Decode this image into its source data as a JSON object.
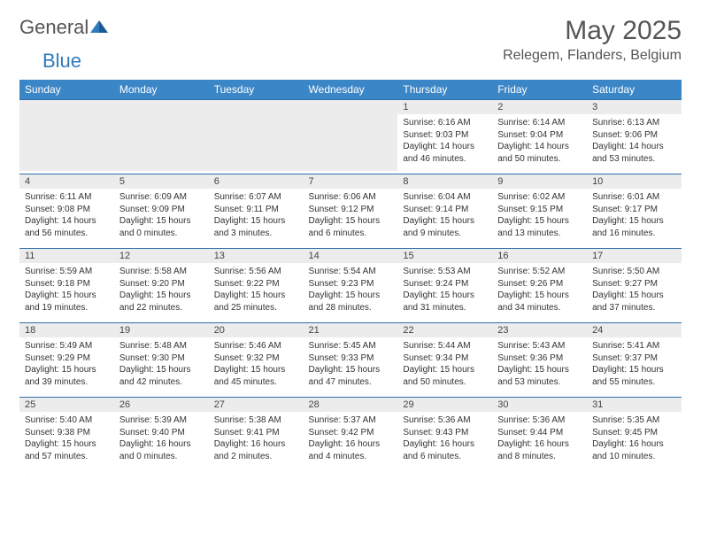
{
  "brand": {
    "name_a": "General",
    "name_b": "Blue"
  },
  "header": {
    "month": "May 2025",
    "location": "Relegem, Flanders, Belgium"
  },
  "colors": {
    "accent": "#3b86c7",
    "row_divider": "#2f6fa9",
    "daynum_bg": "#ececec",
    "text": "#333333",
    "header_text": "#555555"
  },
  "calendar": {
    "day_headers": [
      "Sunday",
      "Monday",
      "Tuesday",
      "Wednesday",
      "Thursday",
      "Friday",
      "Saturday"
    ],
    "daynum_fontsize": 11,
    "body_fontsize": 10,
    "header_fontsize": 12,
    "weeks": [
      [
        null,
        null,
        null,
        null,
        {
          "d": "1",
          "sr": "6:16 AM",
          "ss": "9:03 PM",
          "dl": "14 hours and 46 minutes."
        },
        {
          "d": "2",
          "sr": "6:14 AM",
          "ss": "9:04 PM",
          "dl": "14 hours and 50 minutes."
        },
        {
          "d": "3",
          "sr": "6:13 AM",
          "ss": "9:06 PM",
          "dl": "14 hours and 53 minutes."
        }
      ],
      [
        {
          "d": "4",
          "sr": "6:11 AM",
          "ss": "9:08 PM",
          "dl": "14 hours and 56 minutes."
        },
        {
          "d": "5",
          "sr": "6:09 AM",
          "ss": "9:09 PM",
          "dl": "15 hours and 0 minutes."
        },
        {
          "d": "6",
          "sr": "6:07 AM",
          "ss": "9:11 PM",
          "dl": "15 hours and 3 minutes."
        },
        {
          "d": "7",
          "sr": "6:06 AM",
          "ss": "9:12 PM",
          "dl": "15 hours and 6 minutes."
        },
        {
          "d": "8",
          "sr": "6:04 AM",
          "ss": "9:14 PM",
          "dl": "15 hours and 9 minutes."
        },
        {
          "d": "9",
          "sr": "6:02 AM",
          "ss": "9:15 PM",
          "dl": "15 hours and 13 minutes."
        },
        {
          "d": "10",
          "sr": "6:01 AM",
          "ss": "9:17 PM",
          "dl": "15 hours and 16 minutes."
        }
      ],
      [
        {
          "d": "11",
          "sr": "5:59 AM",
          "ss": "9:18 PM",
          "dl": "15 hours and 19 minutes."
        },
        {
          "d": "12",
          "sr": "5:58 AM",
          "ss": "9:20 PM",
          "dl": "15 hours and 22 minutes."
        },
        {
          "d": "13",
          "sr": "5:56 AM",
          "ss": "9:22 PM",
          "dl": "15 hours and 25 minutes."
        },
        {
          "d": "14",
          "sr": "5:54 AM",
          "ss": "9:23 PM",
          "dl": "15 hours and 28 minutes."
        },
        {
          "d": "15",
          "sr": "5:53 AM",
          "ss": "9:24 PM",
          "dl": "15 hours and 31 minutes."
        },
        {
          "d": "16",
          "sr": "5:52 AM",
          "ss": "9:26 PM",
          "dl": "15 hours and 34 minutes."
        },
        {
          "d": "17",
          "sr": "5:50 AM",
          "ss": "9:27 PM",
          "dl": "15 hours and 37 minutes."
        }
      ],
      [
        {
          "d": "18",
          "sr": "5:49 AM",
          "ss": "9:29 PM",
          "dl": "15 hours and 39 minutes."
        },
        {
          "d": "19",
          "sr": "5:48 AM",
          "ss": "9:30 PM",
          "dl": "15 hours and 42 minutes."
        },
        {
          "d": "20",
          "sr": "5:46 AM",
          "ss": "9:32 PM",
          "dl": "15 hours and 45 minutes."
        },
        {
          "d": "21",
          "sr": "5:45 AM",
          "ss": "9:33 PM",
          "dl": "15 hours and 47 minutes."
        },
        {
          "d": "22",
          "sr": "5:44 AM",
          "ss": "9:34 PM",
          "dl": "15 hours and 50 minutes."
        },
        {
          "d": "23",
          "sr": "5:43 AM",
          "ss": "9:36 PM",
          "dl": "15 hours and 53 minutes."
        },
        {
          "d": "24",
          "sr": "5:41 AM",
          "ss": "9:37 PM",
          "dl": "15 hours and 55 minutes."
        }
      ],
      [
        {
          "d": "25",
          "sr": "5:40 AM",
          "ss": "9:38 PM",
          "dl": "15 hours and 57 minutes."
        },
        {
          "d": "26",
          "sr": "5:39 AM",
          "ss": "9:40 PM",
          "dl": "16 hours and 0 minutes."
        },
        {
          "d": "27",
          "sr": "5:38 AM",
          "ss": "9:41 PM",
          "dl": "16 hours and 2 minutes."
        },
        {
          "d": "28",
          "sr": "5:37 AM",
          "ss": "9:42 PM",
          "dl": "16 hours and 4 minutes."
        },
        {
          "d": "29",
          "sr": "5:36 AM",
          "ss": "9:43 PM",
          "dl": "16 hours and 6 minutes."
        },
        {
          "d": "30",
          "sr": "5:36 AM",
          "ss": "9:44 PM",
          "dl": "16 hours and 8 minutes."
        },
        {
          "d": "31",
          "sr": "5:35 AM",
          "ss": "9:45 PM",
          "dl": "16 hours and 10 minutes."
        }
      ]
    ],
    "labels": {
      "sunrise": "Sunrise:",
      "sunset": "Sunset:",
      "daylight": "Daylight:"
    }
  }
}
